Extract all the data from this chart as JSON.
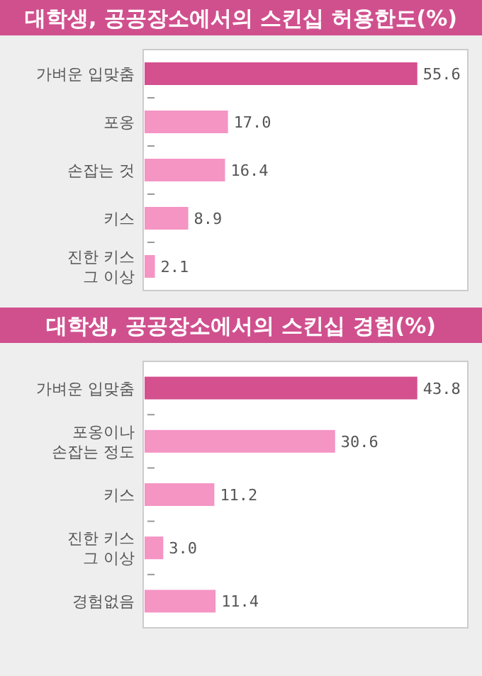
{
  "chart_data": [
    {
      "type": "bar",
      "orientation": "horizontal",
      "title": "대학생, 공공장소에서의 스킨십 허용한도(%)",
      "categories": [
        "가벼운 입맞춤",
        "포옹",
        "손잡는 것",
        "키스",
        "진한 키스\n그 이상"
      ],
      "values": [
        55.6,
        17.0,
        16.4,
        8.9,
        2.1
      ],
      "value_labels": [
        "55.6",
        "17.0",
        "16.4",
        "8.9",
        "2.1"
      ],
      "colors": [
        "#d4508f",
        "#f495c4",
        "#f495c4",
        "#f495c4",
        "#f495c4"
      ]
    },
    {
      "type": "bar",
      "orientation": "horizontal",
      "title": "대학생, 공공장소에서의 스킨십 경험(%)",
      "categories": [
        "가벼운 입맞춤",
        "포옹이나\n손잡는 정도",
        "키스",
        "진한 키스\n그 이상",
        "경험없음"
      ],
      "values": [
        43.8,
        30.6,
        11.2,
        3.0,
        11.4
      ],
      "value_labels": [
        "43.8",
        "30.6",
        "11.2",
        "3.0",
        "11.4"
      ],
      "colors": [
        "#d4508f",
        "#f495c4",
        "#f495c4",
        "#f495c4",
        "#f495c4"
      ]
    }
  ]
}
